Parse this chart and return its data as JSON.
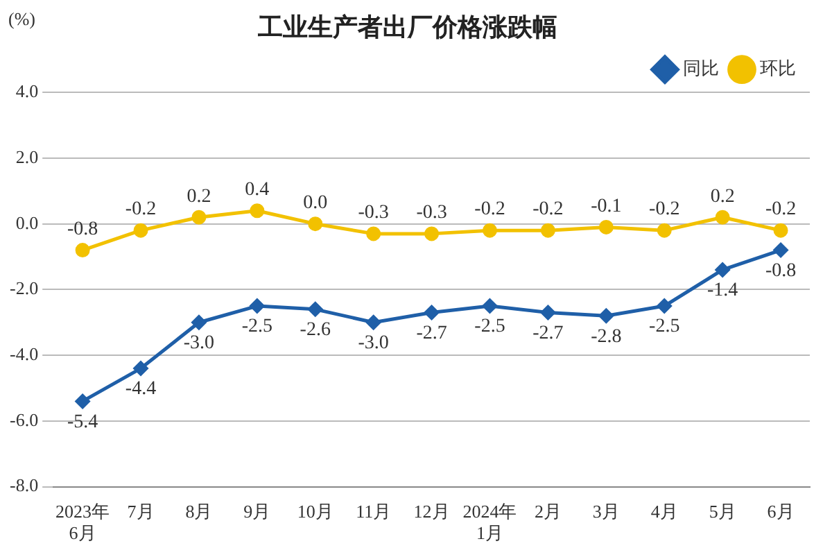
{
  "chart_data": {
    "type": "line",
    "title": "工业生产者出厂价格涨跌幅",
    "ylabel": "(%)",
    "categories": [
      "2023年\n6月",
      "7月",
      "8月",
      "9月",
      "10月",
      "11月",
      "12月",
      "2024年\n1月",
      "2月",
      "3月",
      "4月",
      "5月",
      "6月"
    ],
    "series": [
      {
        "name": "同比",
        "color": "#1f5fa8",
        "marker": "diamond",
        "values": [
          -5.4,
          -4.4,
          -3.0,
          -2.5,
          -2.6,
          -3.0,
          -2.7,
          -2.5,
          -2.7,
          -2.8,
          -2.5,
          -1.4,
          -0.8
        ],
        "value_labels": [
          "-5.4",
          "-4.4",
          "-3.0",
          "-2.5",
          "-2.6",
          "-3.0",
          "-2.7",
          "-2.5",
          "-2.7",
          "-2.8",
          "-2.5",
          "-1.4",
          "-0.8"
        ]
      },
      {
        "name": "环比",
        "color": "#f2c100",
        "marker": "circle",
        "values": [
          -0.8,
          -0.2,
          0.2,
          0.4,
          0.0,
          -0.3,
          -0.3,
          -0.2,
          -0.2,
          -0.1,
          -0.2,
          0.2,
          -0.2
        ],
        "value_labels": [
          "-0.8",
          "-0.2",
          "0.2",
          "0.4",
          "0.0",
          "-0.3",
          "-0.3",
          "-0.2",
          "-0.2",
          "-0.1",
          "-0.2",
          "0.2",
          "-0.2"
        ]
      }
    ],
    "ylim": [
      -8,
      4
    ],
    "yticks": [
      {
        "value": -8,
        "label": "-8.0"
      },
      {
        "value": -6,
        "label": "-6.0"
      },
      {
        "value": -4,
        "label": "-4.0"
      },
      {
        "value": -2,
        "label": "-2.0"
      },
      {
        "value": 0,
        "label": "0.0"
      },
      {
        "value": 2,
        "label": "2.0"
      },
      {
        "value": 4,
        "label": "4.0"
      }
    ],
    "grid": "y",
    "legend": "top right"
  }
}
